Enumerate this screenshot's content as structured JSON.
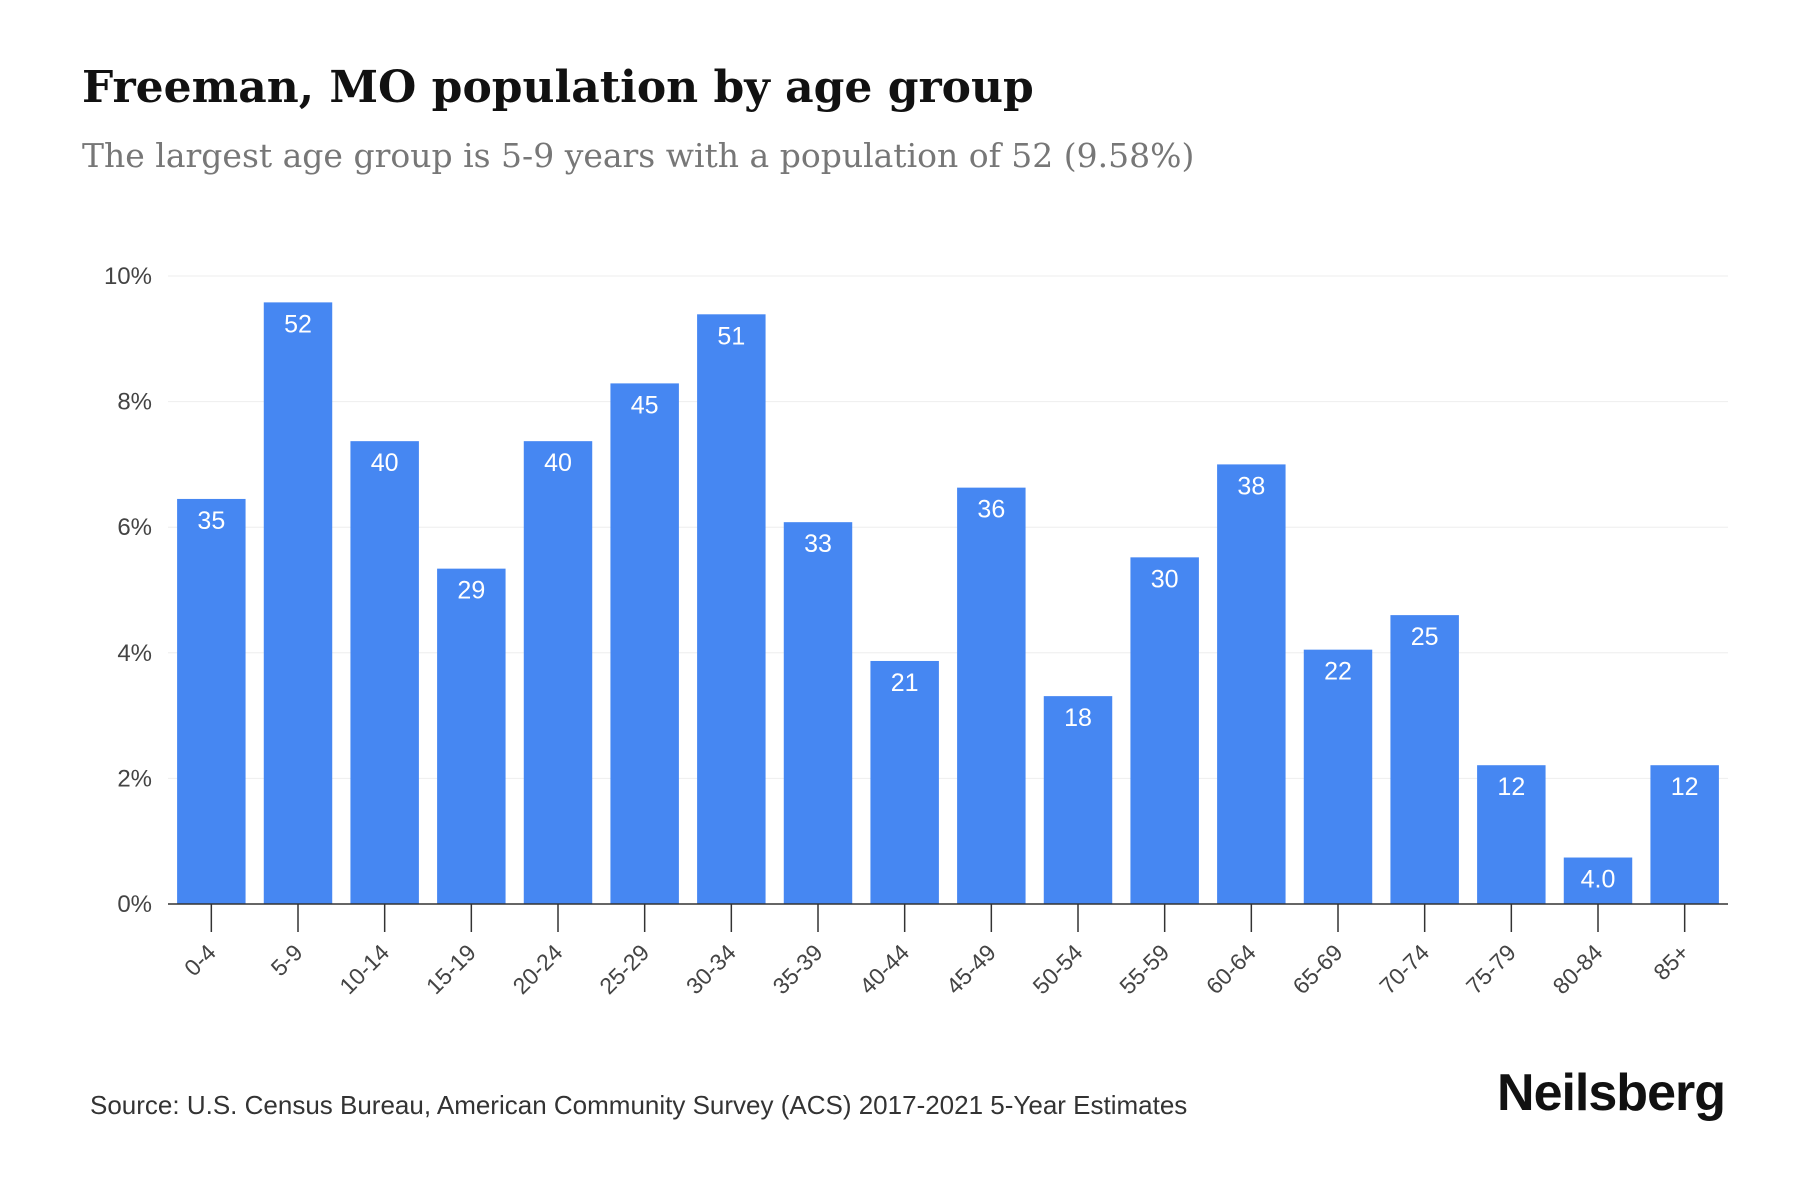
{
  "header": {
    "title": "Freeman, MO population by age group",
    "subtitle": "The largest age group is 5-9 years with a population of 52 (9.58%)"
  },
  "footer": {
    "source": "Source: U.S. Census Bureau, American Community Survey (ACS) 2017-2021 5-Year Estimates",
    "brand": "Neilsberg"
  },
  "colors": {
    "bar": "#4687f2",
    "bar_label": "#ffffff",
    "gridline": "#eeeeee",
    "axis": "#333333",
    "tick_label": "#444444"
  },
  "chart_data": {
    "type": "bar",
    "title": "Freeman, MO population by age group",
    "subtitle": "The largest age group is 5-9 years with a population of 52 (9.58%)",
    "xlabel": "",
    "ylabel": "",
    "categories": [
      "0-4",
      "5-9",
      "10-14",
      "15-19",
      "20-24",
      "25-29",
      "30-34",
      "35-39",
      "40-44",
      "45-49",
      "50-54",
      "55-59",
      "60-64",
      "65-69",
      "70-74",
      "75-79",
      "80-84",
      "85+"
    ],
    "values": [
      6.45,
      9.58,
      7.37,
      5.34,
      7.37,
      8.29,
      9.39,
      6.08,
      3.87,
      6.63,
      3.31,
      5.52,
      7.0,
      4.05,
      4.6,
      2.21,
      0.74,
      2.21
    ],
    "data_labels": [
      "35",
      "52",
      "40",
      "29",
      "40",
      "45",
      "51",
      "33",
      "21",
      "36",
      "18",
      "30",
      "38",
      "22",
      "25",
      "12",
      "4.0",
      "12"
    ],
    "yticks": [
      0,
      2,
      4,
      6,
      8,
      10
    ],
    "ytick_labels": [
      "0%",
      "2%",
      "4%",
      "6%",
      "8%",
      "10%"
    ],
    "ylim": [
      0,
      10
    ],
    "grid": true,
    "legend": "none"
  }
}
